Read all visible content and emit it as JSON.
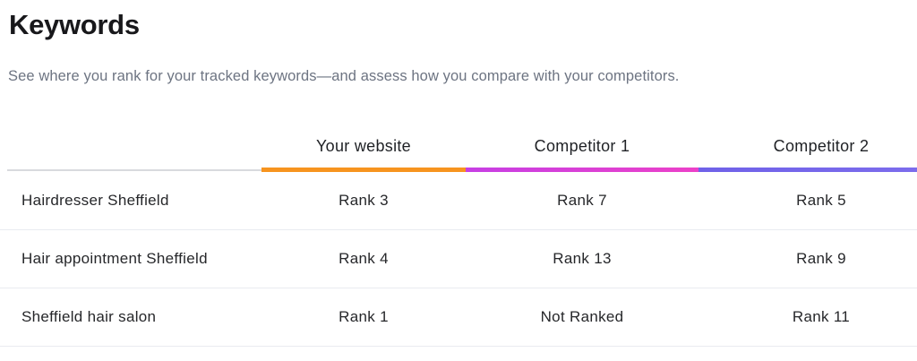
{
  "page": {
    "title": "Keywords",
    "subtitle": "See where you rank for your tracked keywords—and assess how you compare with your competitors."
  },
  "table": {
    "columns": [
      {
        "label": "",
        "bar_colors": [
          "#d8dade"
        ]
      },
      {
        "label": "Your website",
        "bar_colors": [
          "#f7941f"
        ]
      },
      {
        "label": "Competitor 1",
        "bar_colors": [
          "#c63fe4",
          "#ec40c8"
        ]
      },
      {
        "label": "Competitor 2",
        "bar_colors": [
          "#6f61e8",
          "#7c6cec"
        ]
      }
    ],
    "rows": [
      {
        "keyword": "Hairdresser Sheffield",
        "ranks": [
          "Rank 3",
          "Rank 7",
          "Rank 5"
        ]
      },
      {
        "keyword": "Hair appointment Sheffield",
        "ranks": [
          "Rank 4",
          "Rank 13",
          "Rank 9"
        ]
      },
      {
        "keyword": "Sheffield hair salon",
        "ranks": [
          "Rank 1",
          "Not Ranked",
          "Rank 11"
        ]
      }
    ]
  },
  "colors": {
    "title_text": "#18181b",
    "subtitle_text": "#6d7482",
    "table_text": "#26272a",
    "row_divider": "#e9ebf0",
    "header_thin_line": "#d8dade",
    "accent_your_website": "#f7941f",
    "accent_competitor_1": "#d940d6",
    "accent_competitor_2": "#7566ea"
  }
}
